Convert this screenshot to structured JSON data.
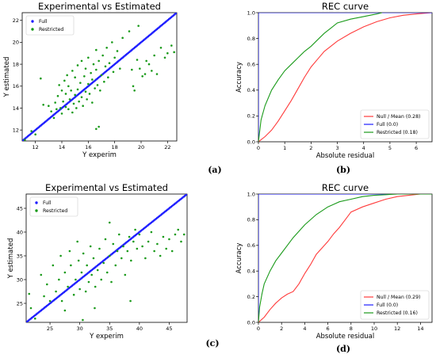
{
  "chart_data": [
    {
      "id": "a",
      "type": "scatter",
      "title": "Experimental vs Estimated",
      "xlabel": "Y experim",
      "ylabel": "Y estimated",
      "caption": "(a)",
      "xlim": [
        11,
        22.7
      ],
      "ylim": [
        11,
        22.7
      ],
      "xticks": [
        12,
        14,
        16,
        18,
        20,
        22
      ],
      "yticks": [
        12,
        14,
        16,
        18,
        20,
        22
      ],
      "legend": "top-left",
      "colors": {
        "full": "#1f1fff",
        "restricted": "#1a9a1a",
        "diagonal": "#ff5555"
      },
      "series": [
        {
          "name": "Full",
          "line_range": [
            11,
            22.7
          ]
        },
        {
          "name": "Restricted",
          "points": [
            [
              11.2,
              11.1
            ],
            [
              11.7,
              11.9
            ],
            [
              12.0,
              11.6
            ],
            [
              12.4,
              16.7
            ],
            [
              12.6,
              14.3
            ],
            [
              13.0,
              14.2
            ],
            [
              13.2,
              13.7
            ],
            [
              13.4,
              13.1
            ],
            [
              13.5,
              14.5
            ],
            [
              13.6,
              13.9
            ],
            [
              13.7,
              15.1
            ],
            [
              13.8,
              16.1
            ],
            [
              13.9,
              14.0
            ],
            [
              14.0,
              15.6
            ],
            [
              14.0,
              13.5
            ],
            [
              14.1,
              14.6
            ],
            [
              14.2,
              16.5
            ],
            [
              14.3,
              14.1
            ],
            [
              14.3,
              15.3
            ],
            [
              14.4,
              17.0
            ],
            [
              14.5,
              13.9
            ],
            [
              14.5,
              16.0
            ],
            [
              14.6,
              14.8
            ],
            [
              14.7,
              15.6
            ],
            [
              14.8,
              13.6
            ],
            [
              14.8,
              17.4
            ],
            [
              14.9,
              14.4
            ],
            [
              15.0,
              15.2
            ],
            [
              15.0,
              16.8
            ],
            [
              15.1,
              14.0
            ],
            [
              15.2,
              15.7
            ],
            [
              15.2,
              17.9
            ],
            [
              15.3,
              14.6
            ],
            [
              15.4,
              16.3
            ],
            [
              15.5,
              15.0
            ],
            [
              15.5,
              18.3
            ],
            [
              15.6,
              14.2
            ],
            [
              15.7,
              16.9
            ],
            [
              15.8,
              15.5
            ],
            [
              15.8,
              17.6
            ],
            [
              15.9,
              14.8
            ],
            [
              16.0,
              16.2
            ],
            [
              16.0,
              18.6
            ],
            [
              16.1,
              15.3
            ],
            [
              16.2,
              17.2
            ],
            [
              16.3,
              14.5
            ],
            [
              16.3,
              16.6
            ],
            [
              16.4,
              18.0
            ],
            [
              16.5,
              15.8
            ],
            [
              16.6,
              17.5
            ],
            [
              16.6,
              19.3
            ],
            [
              16.7,
              16.1
            ],
            [
              16.8,
              18.3
            ],
            [
              16.9,
              15.6
            ],
            [
              17.0,
              17.0
            ],
            [
              17.1,
              18.8
            ],
            [
              17.2,
              16.4
            ],
            [
              17.3,
              17.8
            ],
            [
              17.4,
              19.5
            ],
            [
              17.5,
              16.8
            ],
            [
              17.6,
              18.1
            ],
            [
              17.8,
              20.0
            ],
            [
              17.9,
              17.3
            ],
            [
              18.0,
              18.6
            ],
            [
              16.8,
              12.3
            ],
            [
              16.6,
              12.1
            ],
            [
              18.2,
              19.2
            ],
            [
              18.4,
              17.6
            ],
            [
              19.3,
              17.5
            ],
            [
              19.4,
              16.0
            ],
            [
              19.5,
              15.6
            ],
            [
              19.7,
              18.4
            ],
            [
              19.9,
              17.6
            ],
            [
              20.1,
              16.9
            ],
            [
              20.3,
              17.1
            ],
            [
              20.4,
              18.3
            ],
            [
              20.6,
              18.0
            ],
            [
              20.8,
              17.4
            ],
            [
              21.0,
              18.8
            ],
            [
              21.2,
              17.1
            ],
            [
              21.5,
              19.5
            ],
            [
              21.8,
              18.6
            ],
            [
              22.0,
              19.0
            ],
            [
              22.3,
              19.7
            ],
            [
              22.5,
              19.1
            ],
            [
              19.1,
              21.0
            ],
            [
              18.6,
              20.4
            ],
            [
              19.8,
              21.5
            ]
          ]
        }
      ]
    },
    {
      "id": "b",
      "type": "line",
      "title": "REC curve",
      "xlabel": "Absolute residual",
      "ylabel": "Accuracy",
      "caption": "(b)",
      "xlim": [
        0,
        6.6
      ],
      "ylim": [
        0,
        1
      ],
      "xticks": [
        0,
        1,
        2,
        3,
        4,
        5,
        6
      ],
      "yticks": [
        0.0,
        0.2,
        0.4,
        0.6,
        0.8,
        1.0
      ],
      "legend": "bottom-right",
      "colors": {
        "null": "#ff3b3b",
        "full": "#1f1fff",
        "restricted": "#1a9a1a"
      },
      "series": [
        {
          "name": "Null / Mean (0.28)",
          "x": [
            0,
            0.25,
            0.5,
            0.75,
            1.0,
            1.25,
            1.5,
            1.75,
            2.0,
            2.25,
            2.5,
            2.75,
            3.0,
            3.5,
            4.0,
            4.5,
            5.0,
            5.5,
            6.0,
            6.6
          ],
          "y": [
            0,
            0.04,
            0.09,
            0.16,
            0.24,
            0.32,
            0.41,
            0.5,
            0.58,
            0.64,
            0.7,
            0.74,
            0.78,
            0.84,
            0.89,
            0.93,
            0.96,
            0.98,
            0.99,
            1.0
          ]
        },
        {
          "name": "Full (0.0)",
          "x": [
            0,
            0,
            6.6
          ],
          "y": [
            0,
            1,
            1
          ]
        },
        {
          "name": "Restricted (0.18)",
          "x": [
            0,
            0.1,
            0.25,
            0.5,
            0.75,
            1.0,
            1.25,
            1.5,
            1.75,
            2.0,
            2.25,
            2.5,
            2.75,
            3.0,
            3.5,
            4.0,
            4.5,
            4.7
          ],
          "y": [
            0,
            0.17,
            0.28,
            0.4,
            0.48,
            0.55,
            0.6,
            0.65,
            0.7,
            0.74,
            0.79,
            0.84,
            0.88,
            0.92,
            0.95,
            0.97,
            0.99,
            1.0
          ]
        }
      ]
    },
    {
      "id": "c",
      "type": "scatter",
      "title": "Experimental vs Estimated",
      "xlabel": "Y experim",
      "ylabel": "Y estimated",
      "caption": "(c)",
      "xlim": [
        21,
        48
      ],
      "ylim": [
        21,
        48
      ],
      "xticks": [
        25,
        30,
        35,
        40,
        45
      ],
      "yticks": [
        25,
        30,
        35,
        40,
        45
      ],
      "legend": "top-left",
      "colors": {
        "full": "#1f1fff",
        "restricted": "#1a9a1a",
        "diagonal": "#ff5555"
      },
      "series": [
        {
          "name": "Full",
          "line_range": [
            21,
            48
          ]
        },
        {
          "name": "Restricted",
          "points": [
            [
              21.5,
              27.0
            ],
            [
              21.8,
              24.0
            ],
            [
              22.5,
              21.8
            ],
            [
              23.5,
              31.0
            ],
            [
              24.0,
              26.5
            ],
            [
              24.5,
              29.0
            ],
            [
              25.0,
              25.5
            ],
            [
              25.5,
              33.0
            ],
            [
              26.0,
              27.5
            ],
            [
              26.5,
              30.0
            ],
            [
              26.8,
              35.0
            ],
            [
              27.0,
              25.5
            ],
            [
              27.5,
              31.5
            ],
            [
              28.0,
              28.5
            ],
            [
              28.3,
              36.0
            ],
            [
              28.5,
              33.0
            ],
            [
              29.0,
              26.8
            ],
            [
              29.3,
              30.0
            ],
            [
              29.6,
              38.0
            ],
            [
              29.8,
              34.0
            ],
            [
              30.0,
              28.0
            ],
            [
              30.3,
              31.5
            ],
            [
              30.6,
              35.5
            ],
            [
              31.0,
              27.5
            ],
            [
              31.2,
              33.0
            ],
            [
              31.5,
              29.5
            ],
            [
              31.8,
              37.0
            ],
            [
              32.0,
              31.0
            ],
            [
              32.3,
              34.5
            ],
            [
              32.6,
              28.5
            ],
            [
              33.0,
              32.0
            ],
            [
              33.3,
              36.5
            ],
            [
              33.6,
              30.0
            ],
            [
              34.0,
              33.5
            ],
            [
              34.3,
              38.5
            ],
            [
              34.6,
              31.5
            ],
            [
              35.0,
              35.0
            ],
            [
              35.3,
              29.5
            ],
            [
              35.6,
              37.5
            ],
            [
              36.0,
              33.0
            ],
            [
              36.3,
              36.0
            ],
            [
              36.6,
              39.5
            ],
            [
              37.0,
              34.5
            ],
            [
              37.3,
              37.0
            ],
            [
              37.6,
              31.0
            ],
            [
              38.0,
              36.0
            ],
            [
              38.3,
              39.0
            ],
            [
              38.6,
              34.0
            ],
            [
              39.0,
              38.0
            ],
            [
              39.3,
              40.5
            ],
            [
              39.6,
              36.5
            ],
            [
              40.0,
              39.5
            ],
            [
              40.5,
              37.0
            ],
            [
              41.0,
              34.5
            ],
            [
              41.5,
              38.0
            ],
            [
              42.0,
              40.0
            ],
            [
              42.5,
              36.0
            ],
            [
              43.0,
              37.5
            ],
            [
              43.5,
              35.0
            ],
            [
              44.0,
              39.0
            ],
            [
              44.5,
              36.5
            ],
            [
              45.0,
              38.5
            ],
            [
              45.5,
              36.0
            ],
            [
              46.0,
              39.5
            ],
            [
              46.5,
              40.5
            ],
            [
              47.0,
              38.0
            ],
            [
              47.5,
              39.5
            ],
            [
              32.5,
              24.0
            ],
            [
              30.5,
              21.5
            ],
            [
              38.5,
              25.5
            ],
            [
              35.0,
              42.0
            ],
            [
              27.5,
              23.5
            ]
          ]
        }
      ]
    },
    {
      "id": "d",
      "type": "line",
      "title": "REC curve",
      "xlabel": "Absolute residual",
      "ylabel": "Accuracy",
      "caption": "(d)",
      "xlim": [
        0,
        15
      ],
      "ylim": [
        0,
        1
      ],
      "xticks": [
        0,
        2,
        4,
        6,
        8,
        10,
        12,
        14
      ],
      "yticks": [
        0.0,
        0.2,
        0.4,
        0.6,
        0.8,
        1.0
      ],
      "legend": "bottom-right",
      "colors": {
        "null": "#ff3b3b",
        "full": "#1f1fff",
        "restricted": "#1a9a1a"
      },
      "series": [
        {
          "name": "Null / Mean (0.29)",
          "x": [
            0,
            0.5,
            1,
            1.5,
            2,
            2.5,
            3,
            3.5,
            4,
            4.5,
            5,
            5.5,
            6,
            6.5,
            7,
            7.5,
            8,
            9,
            10,
            11,
            12,
            13,
            14,
            15
          ],
          "y": [
            0,
            0.04,
            0.1,
            0.15,
            0.19,
            0.22,
            0.24,
            0.3,
            0.38,
            0.45,
            0.53,
            0.58,
            0.63,
            0.69,
            0.74,
            0.8,
            0.86,
            0.9,
            0.93,
            0.96,
            0.98,
            0.99,
            1.0,
            1.0
          ]
        },
        {
          "name": "Full (0.0)",
          "x": [
            0,
            0,
            15
          ],
          "y": [
            0,
            1,
            1
          ]
        },
        {
          "name": "Restricted (0.16)",
          "x": [
            0,
            0.1,
            0.3,
            0.5,
            1,
            1.5,
            2,
            2.5,
            3,
            3.5,
            4,
            4.5,
            5,
            5.5,
            6,
            6.5,
            7,
            8,
            9,
            10,
            11,
            12,
            13,
            14,
            15
          ],
          "y": [
            0,
            0.12,
            0.22,
            0.3,
            0.4,
            0.48,
            0.54,
            0.6,
            0.66,
            0.71,
            0.76,
            0.8,
            0.84,
            0.87,
            0.9,
            0.92,
            0.94,
            0.96,
            0.98,
            0.99,
            0.995,
            1.0,
            1.0,
            1.0,
            1.0
          ]
        }
      ]
    }
  ]
}
